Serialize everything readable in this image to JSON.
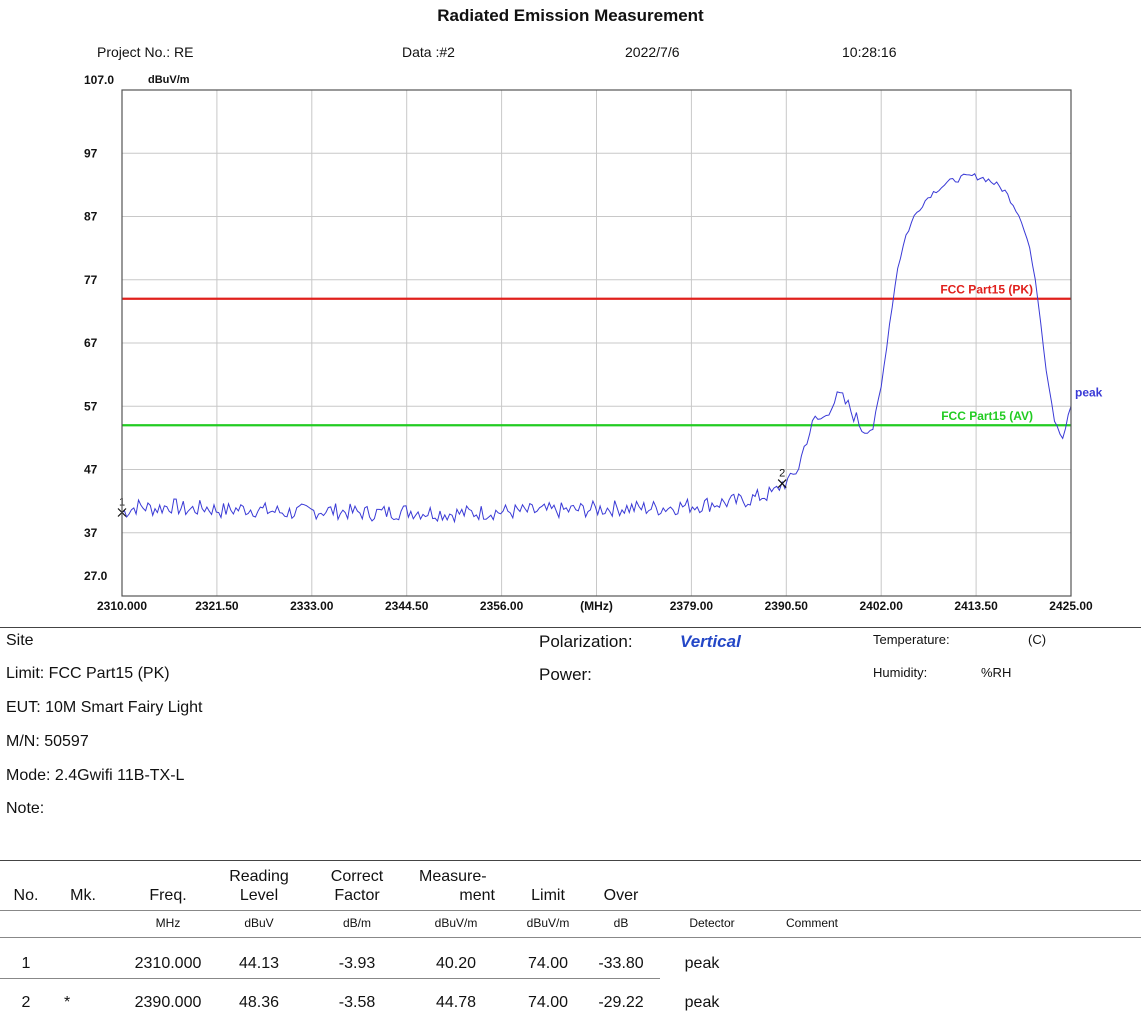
{
  "header": {
    "title": "Radiated Emission Measurement",
    "project": "Project No.: RE",
    "data_no": "Data :#2",
    "date": "2022/7/6",
    "time": "10:28:16"
  },
  "chart_data": {
    "type": "line",
    "title": "Radiated Emission Measurement",
    "ylabel": "dBuV/m",
    "xlabel": "(MHz)",
    "xlim": [
      2310.0,
      2425.0
    ],
    "ylim": [
      27.0,
      107.0
    ],
    "x_tick_labels": [
      "2310.000",
      "2321.50",
      "2333.00",
      "2344.50",
      "2356.00",
      "(MHz)",
      "2379.00",
      "2390.50",
      "2402.00",
      "2413.50",
      "2425.00"
    ],
    "y_tick_labels": [
      "107.0",
      "97",
      "87",
      "77",
      "67",
      "57",
      "47",
      "37",
      "27.0"
    ],
    "grid": true,
    "limit_lines": [
      {
        "name": "FCC Part15 (PK)",
        "value": 74.0,
        "color": "#e0201c"
      },
      {
        "name": "FCC Part15 (AV)",
        "value": 54.0,
        "color": "#22cc22"
      }
    ],
    "series": [
      {
        "name": "peak",
        "color": "#3a3ad6",
        "x": [
          2310.0,
          2312,
          2314,
          2316,
          2318,
          2320,
          2322,
          2325,
          2330,
          2335,
          2340,
          2345,
          2350,
          2355,
          2360,
          2365,
          2370,
          2375,
          2380,
          2383,
          2385,
          2387,
          2389,
          2390,
          2391,
          2392,
          2393,
          2394,
          2395,
          2396,
          2397,
          2398,
          2399,
          2400,
          2401,
          2402,
          2403,
          2404,
          2405,
          2406,
          2407,
          2408,
          2409,
          2410,
          2411,
          2412,
          2413,
          2414,
          2415,
          2416,
          2417,
          2418,
          2419,
          2420,
          2421,
          2422,
          2423,
          2424,
          2425
        ],
        "y": [
          40.2,
          41.2,
          40.8,
          41.3,
          40.6,
          41.0,
          40.5,
          40.8,
          40.2,
          40.5,
          40.1,
          40.4,
          40.0,
          40.3,
          40.4,
          40.6,
          40.9,
          40.9,
          41.4,
          41.8,
          42.0,
          42.6,
          43.3,
          44.8,
          45.2,
          47.5,
          52.0,
          54.8,
          55.0,
          57.5,
          58.5,
          57.0,
          55.0,
          53.0,
          53.5,
          60.0,
          70.0,
          79.0,
          84.0,
          87.0,
          89.0,
          90.5,
          91.5,
          92.3,
          92.8,
          93.2,
          93.4,
          93.2,
          92.8,
          92.0,
          91.0,
          89.0,
          86.5,
          82.0,
          74.0,
          63.0,
          55.0,
          52.0,
          57.0
        ]
      }
    ],
    "markers": [
      {
        "label": "1",
        "x": 2310.0,
        "y": 40.2
      },
      {
        "label": "2",
        "x": 2390.0,
        "y": 44.78
      }
    ]
  },
  "info": {
    "site": "Site",
    "limit": "Limit: FCC Part15 (PK)",
    "eut": "EUT:  10M  Smart  Fairy Light",
    "mn": "M/N:  50597",
    "mode": "Mode:  2.4Gwifi 11B-TX-L",
    "note": "Note:",
    "polarization_label": "Polarization:",
    "polarization_value": "Vertical",
    "power_label": "Power:",
    "temperature_label": "Temperature:",
    "temperature_unit": "(C)",
    "humidity_label": "Humidity:",
    "humidity_unit": "%RH"
  },
  "table": {
    "headers": {
      "no": "No.",
      "mk": "Mk.",
      "freq": "Freq.",
      "reading": [
        "Reading",
        "Level"
      ],
      "correct": [
        "Correct",
        "Factor"
      ],
      "measure": [
        "Measure-",
        "ment"
      ],
      "limit": "Limit",
      "over": "Over"
    },
    "units": {
      "freq": "MHz",
      "reading": "dBuV",
      "correct": "dB/m",
      "measure": "dBuV/m",
      "limit": "dBuV/m",
      "over": "dB",
      "detector": "Detector",
      "comment": "Comment"
    },
    "rows": [
      {
        "no": "1",
        "mk": "",
        "freq": "2310.000",
        "reading": "44.13",
        "correct": "-3.93",
        "measure": "40.20",
        "limit": "74.00",
        "over": "-33.80",
        "detector": "peak"
      },
      {
        "no": "2",
        "mk": "*",
        "freq": "2390.000",
        "reading": "48.36",
        "correct": "-3.58",
        "measure": "44.78",
        "limit": "74.00",
        "over": "-29.22",
        "detector": "peak"
      }
    ]
  }
}
